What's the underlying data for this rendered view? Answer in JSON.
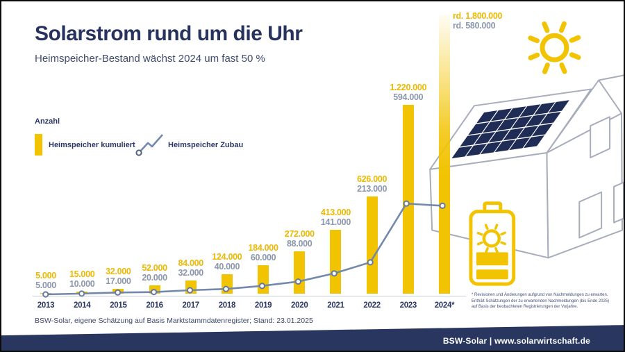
{
  "header": {
    "title": "Solarstrom rund um die Uhr",
    "subtitle": "Heimspeicher-Bestand wächst 2024 um fast 50 %"
  },
  "legend": {
    "axis_caption": "Anzahl",
    "bar_series_label": "Heimspeicher kumuliert",
    "line_series_label": "Heimspeicher Zubau"
  },
  "chart_data": {
    "type": "bar",
    "subtype": "combo bar+line, no visible y-axis, values labeled above bars",
    "categories": [
      "2013",
      "2014",
      "2015",
      "2016",
      "2017",
      "2018",
      "2019",
      "2020",
      "2021",
      "2022",
      "2023",
      "2024*"
    ],
    "series": [
      {
        "name": "Heimspeicher kumuliert",
        "type": "bar",
        "color": "#F2C300",
        "values": [
          5000,
          15000,
          32000,
          52000,
          84000,
          124000,
          184000,
          272000,
          413000,
          626000,
          1220000,
          1800000
        ],
        "labels": [
          "5.000",
          "15.000",
          "32.000",
          "52.000",
          "84.000",
          "124.000",
          "184.000",
          "272.000",
          "413.000",
          "626.000",
          "1.220.000",
          "rd. 1.800.000"
        ]
      },
      {
        "name": "Heimspeicher Zubau",
        "type": "line",
        "color": "#7289AC",
        "values": [
          5000,
          10000,
          17000,
          20000,
          32000,
          40000,
          60000,
          88000,
          141000,
          213000,
          594000,
          580000
        ],
        "labels": [
          "5.000",
          "10.000",
          "17.000",
          "20.000",
          "32.000",
          "40.000",
          "60.000",
          "88.000",
          "141.000",
          "213.000",
          "594.000",
          "rd. 580.000"
        ]
      }
    ],
    "title": "Solarstrom rund um die Uhr",
    "xlabel": "",
    "ylabel": "Anzahl",
    "ylim": [
      0,
      1800000
    ],
    "grid": false,
    "legend_position": "top-left",
    "notes": "2024 bar fades out at top (estimate); 2024 labels placed right of bar top"
  },
  "source": "BSW-Solar, eigene Schätzung auf Basis Marktstammdatenregister; Stand: 23.01.2025",
  "footnote": {
    "lines": [
      "* Revisionen und Änderungen aufgrund von Nachmeldungen zu erwarten.",
      "Enthält Schätzungen der zu erwartenden Nachmeldungen (bis Ende 2025)",
      "auf Basis der beobachteten Registrierungen der Vorjahre."
    ]
  },
  "footer": {
    "text": "BSW-Solar | www.solarwirtschaft.de"
  },
  "icons": [
    "sun-icon",
    "battery-storage-icon",
    "house-with-solar-panels-illustration",
    "line-legend-icon"
  ],
  "colors": {
    "accent_yellow": "#F2C300",
    "navy": "#27335E",
    "value_gray": "#8C97AD",
    "line_blue": "#7289AC",
    "footer_band": "#293760",
    "house_outline": "#A7ADBB",
    "panel_navy": "#1F2C55"
  }
}
